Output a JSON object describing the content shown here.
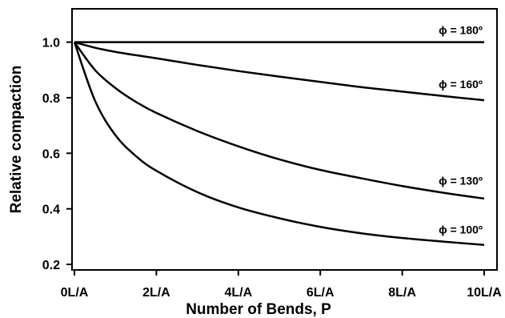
{
  "chart_data": {
    "type": "line",
    "xlabel": "Number of Bends, P",
    "ylabel": "Relative compaction",
    "xlim": [
      0,
      10
    ],
    "ylim": [
      0.18,
      1.12
    ],
    "x_ticks": [
      0,
      2,
      4,
      6,
      8,
      10
    ],
    "x_tick_labels": [
      "0L/A",
      "2L/A",
      "4L/A",
      "6L/A",
      "8L/A",
      "10L/A"
    ],
    "y_ticks": [
      0.2,
      0.4,
      0.6,
      0.8,
      1.0
    ],
    "y_tick_labels": [
      "0.2",
      "0.4",
      "0.6",
      "0.8",
      "1.0"
    ],
    "grid": false,
    "legend": "none",
    "x": [
      0,
      0.5,
      1,
      1.5,
      2,
      3,
      4,
      5,
      6,
      7,
      8,
      9,
      10
    ],
    "series": [
      {
        "label": "ϕ = 180º",
        "values": [
          1.0,
          1.0,
          1.0,
          1.0,
          1.0,
          1.0,
          1.0,
          1.0,
          1.0,
          1.0,
          1.0,
          1.0,
          1.0
        ]
      },
      {
        "label": "ϕ = 160º",
        "values": [
          1.0,
          0.98,
          0.965,
          0.953,
          0.942,
          0.918,
          0.896,
          0.876,
          0.857,
          0.838,
          0.822,
          0.806,
          0.791
        ]
      },
      {
        "label": "ϕ = 130º",
        "values": [
          1.0,
          0.9,
          0.835,
          0.785,
          0.745,
          0.68,
          0.625,
          0.578,
          0.54,
          0.51,
          0.482,
          0.458,
          0.437
        ]
      },
      {
        "label": "ϕ = 100º",
        "values": [
          1.0,
          0.79,
          0.665,
          0.59,
          0.537,
          0.46,
          0.405,
          0.366,
          0.335,
          0.312,
          0.295,
          0.282,
          0.27
        ]
      }
    ]
  }
}
